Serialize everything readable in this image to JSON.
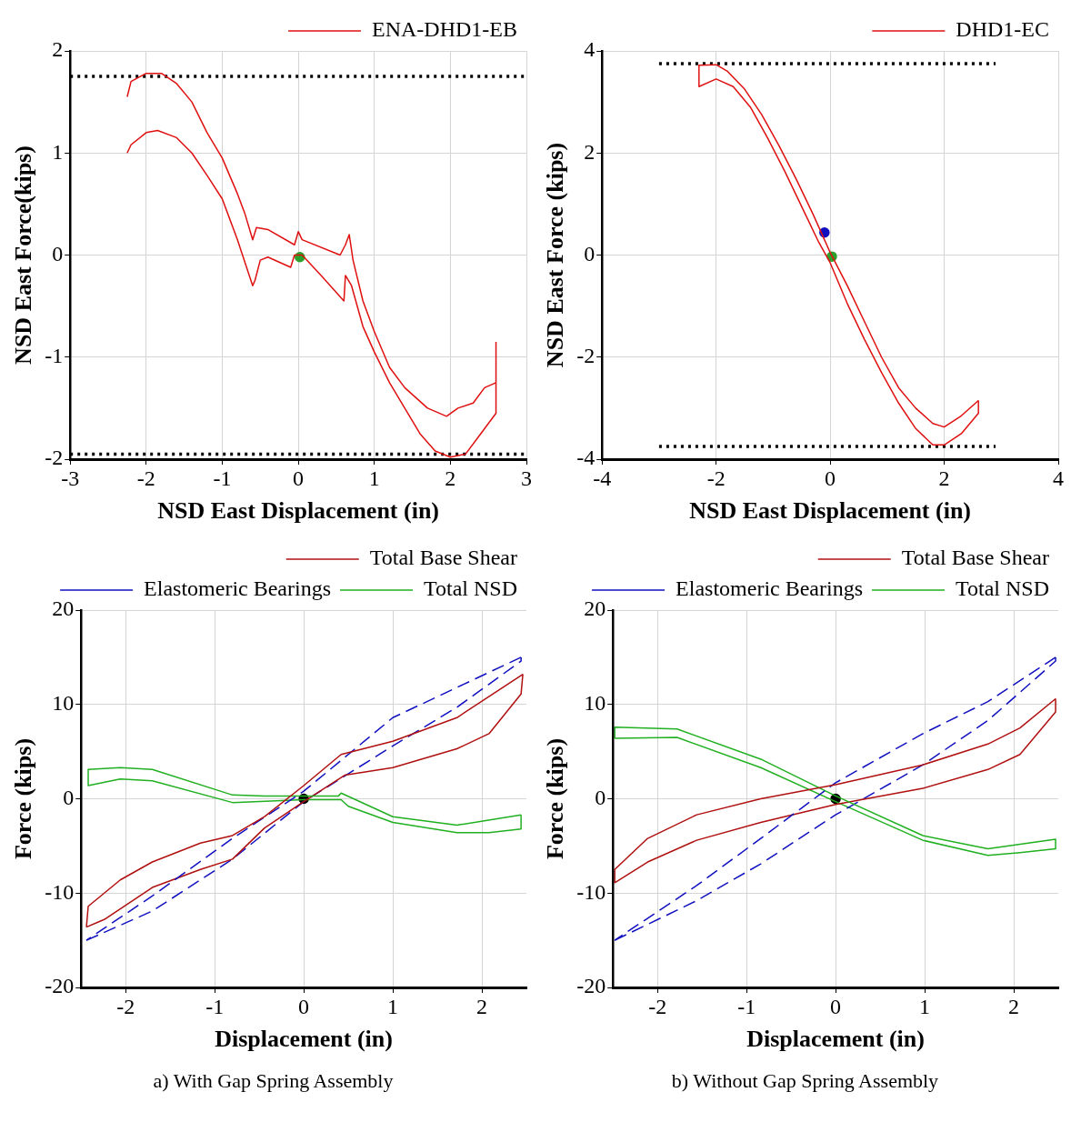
{
  "chart_data": [
    {
      "type": "line",
      "xlabel": "NSD East Displacement (in)",
      "ylabel": "NSD East Force(kips)",
      "xlim": [
        -3,
        3
      ],
      "ylim": [
        -2,
        2
      ],
      "xticks": [
        -3,
        -2,
        -1,
        0,
        1,
        2,
        3
      ],
      "yticks": [
        -2,
        -1,
        0,
        1,
        2
      ],
      "grid": true,
      "legend": "top right",
      "marker": "none",
      "series": [
        {
          "name": "ENA-DHD1-EB",
          "color": "#e01010",
          "x": [
            2.6,
            2.45,
            2.3,
            2.1,
            1.95,
            1.7,
            1.4,
            1.2,
            1.0,
            0.85,
            0.72,
            0.67,
            0.62,
            0.55,
            0.05,
            0.0,
            -0.05,
            -0.4,
            -0.55,
            -0.6,
            -0.7,
            -0.8,
            -1.0,
            -1.2,
            -1.4,
            -1.6,
            -1.8,
            -2.0,
            -2.2,
            -2.25
          ],
          "values": [
            -1.25,
            -1.3,
            -1.45,
            -1.5,
            -1.58,
            -1.5,
            -1.3,
            -1.1,
            -0.75,
            -0.45,
            -0.05,
            0.2,
            0.1,
            0.0,
            0.15,
            0.23,
            0.1,
            0.25,
            0.27,
            0.15,
            0.4,
            0.6,
            0.95,
            1.2,
            1.5,
            1.68,
            1.78,
            1.78,
            1.7,
            1.55
          ]
        },
        {
          "color": "#e01010",
          "x": [
            -2.25,
            -2.2,
            -2.0,
            -1.85,
            -1.6,
            -1.4,
            -1.2,
            -1.0,
            -0.8,
            -0.6,
            -0.57,
            -0.5,
            -0.4,
            -0.1,
            -0.05,
            0.05,
            0.3,
            0.6,
            0.62,
            0.7,
            0.85,
            1.0,
            1.2,
            1.4,
            1.6,
            1.8,
            2.0,
            2.2,
            2.4,
            2.6,
            2.6
          ],
          "values": [
            1.0,
            1.08,
            1.2,
            1.22,
            1.15,
            1.0,
            0.78,
            0.55,
            0.15,
            -0.3,
            -0.25,
            -0.05,
            -0.02,
            -0.12,
            0.0,
            0.0,
            -0.2,
            -0.45,
            -0.2,
            -0.3,
            -0.7,
            -0.95,
            -1.25,
            -1.5,
            -1.75,
            -1.92,
            -1.98,
            -1.95,
            -1.75,
            -1.55,
            -0.85
          ]
        },
        {
          "color": "#000000",
          "line_style": "dotted",
          "x": [
            -3,
            3
          ],
          "values": [
            1.75,
            1.75
          ]
        },
        {
          "color": "#000000",
          "line_style": "dotted",
          "x": [
            -3,
            3
          ],
          "values": [
            -1.95,
            -1.95
          ]
        },
        {
          "type": "scatter",
          "marker": "circle",
          "color": "#2ca02c",
          "x": [
            0.02
          ],
          "values": [
            -0.02
          ]
        }
      ]
    },
    {
      "type": "line",
      "xlabel": "NSD East Displacement (in)",
      "ylabel": "NSD East Force (kips)",
      "xlim": [
        -4,
        4
      ],
      "ylim": [
        -4,
        4
      ],
      "xticks": [
        -4,
        -2,
        0,
        2,
        4
      ],
      "yticks": [
        -4,
        -2,
        0,
        2,
        4
      ],
      "grid": true,
      "legend": "top right",
      "marker": "none",
      "series": [
        {
          "name": "DHD1-EC",
          "color": "#e01010",
          "x": [
            2.6,
            2.3,
            2.0,
            1.8,
            1.5,
            1.2,
            0.9,
            0.6,
            0.3,
            0.0,
            -0.3,
            -0.6,
            -0.9,
            -1.2,
            -1.5,
            -1.8,
            -2.0,
            -2.3
          ],
          "values": [
            -2.85,
            -3.15,
            -3.37,
            -3.3,
            -3.0,
            -2.6,
            -2.0,
            -1.3,
            -0.6,
            0.05,
            0.8,
            1.5,
            2.15,
            2.75,
            3.25,
            3.6,
            3.73,
            3.72
          ]
        },
        {
          "color": "#e01010",
          "x": [
            -2.3,
            -2.3,
            -2.0,
            -1.7,
            -1.4,
            -1.1,
            -0.8,
            -0.5,
            -0.2,
            0.0,
            0.3,
            0.6,
            0.9,
            1.2,
            1.5,
            1.8,
            2.0,
            2.3,
            2.6,
            2.6
          ],
          "values": [
            3.72,
            3.3,
            3.45,
            3.3,
            2.9,
            2.3,
            1.65,
            0.95,
            0.25,
            -0.15,
            -0.95,
            -1.65,
            -2.3,
            -2.9,
            -3.4,
            -3.72,
            -3.72,
            -3.5,
            -3.1,
            -2.85
          ]
        },
        {
          "color": "#000000",
          "line_style": "dotted",
          "x": [
            -3,
            2.9
          ],
          "values": [
            3.75,
            3.75
          ]
        },
        {
          "color": "#000000",
          "line_style": "dotted",
          "x": [
            -3,
            2.9
          ],
          "values": [
            -3.75,
            -3.75
          ]
        },
        {
          "type": "scatter",
          "marker": "circle",
          "color": "#1010c0",
          "x": [
            -0.1
          ],
          "values": [
            0.44
          ]
        },
        {
          "type": "scatter",
          "marker": "circle",
          "color": "#2ca02c",
          "x": [
            0.03
          ],
          "values": [
            -0.03
          ]
        }
      ]
    },
    {
      "type": "line",
      "xlabel": "Displacement (in)",
      "ylabel": "Force (kips)",
      "xlim": [
        -2.5,
        2.5
      ],
      "ylim": [
        -20,
        20
      ],
      "xticks": [
        -2,
        -1,
        0,
        1,
        2
      ],
      "yticks": [
        -20,
        -10,
        0,
        10,
        20
      ],
      "grid": true,
      "legend": "top right",
      "marker": "none",
      "annotations": [
        "a) With Gap Spring Assembly"
      ],
      "series": [
        {
          "name": "Total Base Shear",
          "color": "#b01010",
          "x": [
            2.46,
            1.72,
            1.0,
            0.42,
            0.0,
            -0.44,
            -0.8,
            -1.16,
            -1.7,
            -2.06,
            -2.42,
            -2.44
          ],
          "values": [
            13.2,
            8.6,
            6.1,
            4.7,
            1.4,
            -1.9,
            -3.9,
            -4.7,
            -6.7,
            -8.6,
            -11.4,
            -13.6
          ]
        },
        {
          "name": "Elastomeric Bearings",
          "color": "#1010c0",
          "line_style": "dashed",
          "x": [
            2.44,
            1.0,
            0.0,
            -0.8,
            -1.7,
            -2.44
          ],
          "values": [
            15,
            8.6,
            0.8,
            -4.2,
            -10.3,
            -15
          ]
        },
        {
          "name": "Total NSD",
          "color": "#20b020",
          "x": [
            2.44,
            1.72,
            1.0,
            0.42,
            0.39,
            -0.44,
            -0.8,
            -1.7,
            -2.06,
            -2.42
          ],
          "values": [
            -1.7,
            -2.8,
            -1.9,
            0.6,
            0.3,
            0.3,
            0.4,
            3.1,
            3.3,
            3.1
          ]
        },
        {
          "color": "#b01010",
          "x": [
            -2.44,
            -2.24,
            -1.7,
            -1.16,
            -0.8,
            -0.44,
            0.0,
            0.46,
            1.0,
            1.72,
            2.08,
            2.44,
            2.46
          ],
          "values": [
            -13.6,
            -12.8,
            -9.4,
            -7.5,
            -6.4,
            -3.1,
            -0.3,
            2.5,
            3.3,
            5.3,
            6.9,
            11.1,
            13.2
          ]
        },
        {
          "color": "#1010c0",
          "line_style": "dashed",
          "x": [
            -2.44,
            -1.7,
            -0.8,
            0.0,
            1.0,
            1.72,
            2.44,
            2.44
          ],
          "values": [
            -15,
            -11.9,
            -6.4,
            -0.3,
            5.6,
            9.7,
            14.6,
            15
          ]
        },
        {
          "color": "#20b020",
          "x": [
            -2.42,
            -2.42,
            -2.06,
            -1.7,
            -0.8,
            0.0,
            0.42,
            0.5,
            1.0,
            1.72,
            2.08,
            2.44,
            2.44
          ],
          "values": [
            3.1,
            1.4,
            2.1,
            1.9,
            -0.4,
            -0.1,
            -0.1,
            -0.8,
            -2.5,
            -3.6,
            -3.6,
            -3.2,
            -1.7
          ]
        },
        {
          "type": "scatter",
          "marker": "circle",
          "color": "#000000",
          "x": [
            0
          ],
          "values": [
            0
          ]
        }
      ]
    },
    {
      "type": "line",
      "xlabel": "Displacement (in)",
      "ylabel": "Force (kips)",
      "xlim": [
        -2.5,
        2.5
      ],
      "ylim": [
        -20,
        20
      ],
      "xticks": [
        -2,
        -1,
        0,
        1,
        2
      ],
      "yticks": [
        -20,
        -10,
        0,
        10,
        20
      ],
      "grid": true,
      "legend": "top right",
      "marker": "none",
      "annotations": [
        "b) Without Gap Spring Assembly"
      ],
      "series": [
        {
          "name": "Total Base Shear",
          "color": "#b01010",
          "x": [
            2.47,
            2.07,
            1.71,
            0.98,
            0.0,
            -0.84,
            -1.56,
            -2.11,
            -2.48
          ],
          "values": [
            10.6,
            7.5,
            5.8,
            3.6,
            1.5,
            0.0,
            -1.7,
            -4.2,
            -7.5
          ]
        },
        {
          "name": "Elastomeric Bearings",
          "color": "#1010c0",
          "line_style": "dashed",
          "x": [
            2.47,
            1.71,
            0.98,
            0.0,
            -0.84,
            -1.56,
            -2.48
          ],
          "values": [
            15,
            10.3,
            6.9,
            1.7,
            -4.2,
            -9.2,
            -15
          ]
        },
        {
          "name": "Total NSD",
          "color": "#20b020",
          "x": [
            -2.48,
            -2.48,
            -1.78,
            -0.84,
            0.0,
            0.98,
            1.71,
            2.47,
            2.47
          ],
          "values": [
            6.4,
            7.6,
            7.4,
            4.2,
            0.3,
            -3.9,
            -5.3,
            -4.3,
            -5.3
          ]
        },
        {
          "color": "#b01010",
          "x": [
            -2.48,
            -2.48,
            -2.11,
            -1.56,
            -0.84,
            0.0,
            0.98,
            1.71,
            2.07,
            2.47,
            2.47
          ],
          "values": [
            -7.5,
            -8.9,
            -6.7,
            -4.4,
            -2.5,
            -0.6,
            1.1,
            3.1,
            4.7,
            9.2,
            10.6
          ]
        },
        {
          "color": "#1010c0",
          "line_style": "dashed",
          "x": [
            -2.48,
            -1.56,
            -0.84,
            0.0,
            0.98,
            1.71,
            2.47,
            2.47
          ],
          "values": [
            -15,
            -10.8,
            -6.9,
            -1.7,
            3.6,
            8.3,
            14.6,
            15
          ]
        },
        {
          "color": "#20b020",
          "x": [
            2.47,
            2.07,
            1.71,
            0.98,
            0.0,
            -0.84,
            -1.78,
            -2.48
          ],
          "values": [
            -5.3,
            -5.7,
            -6.0,
            -4.4,
            -0.3,
            3.3,
            6.5,
            6.4
          ]
        },
        {
          "type": "scatter",
          "marker": "circle",
          "color": "#000000",
          "x": [
            0
          ],
          "values": [
            0
          ]
        }
      ]
    }
  ]
}
